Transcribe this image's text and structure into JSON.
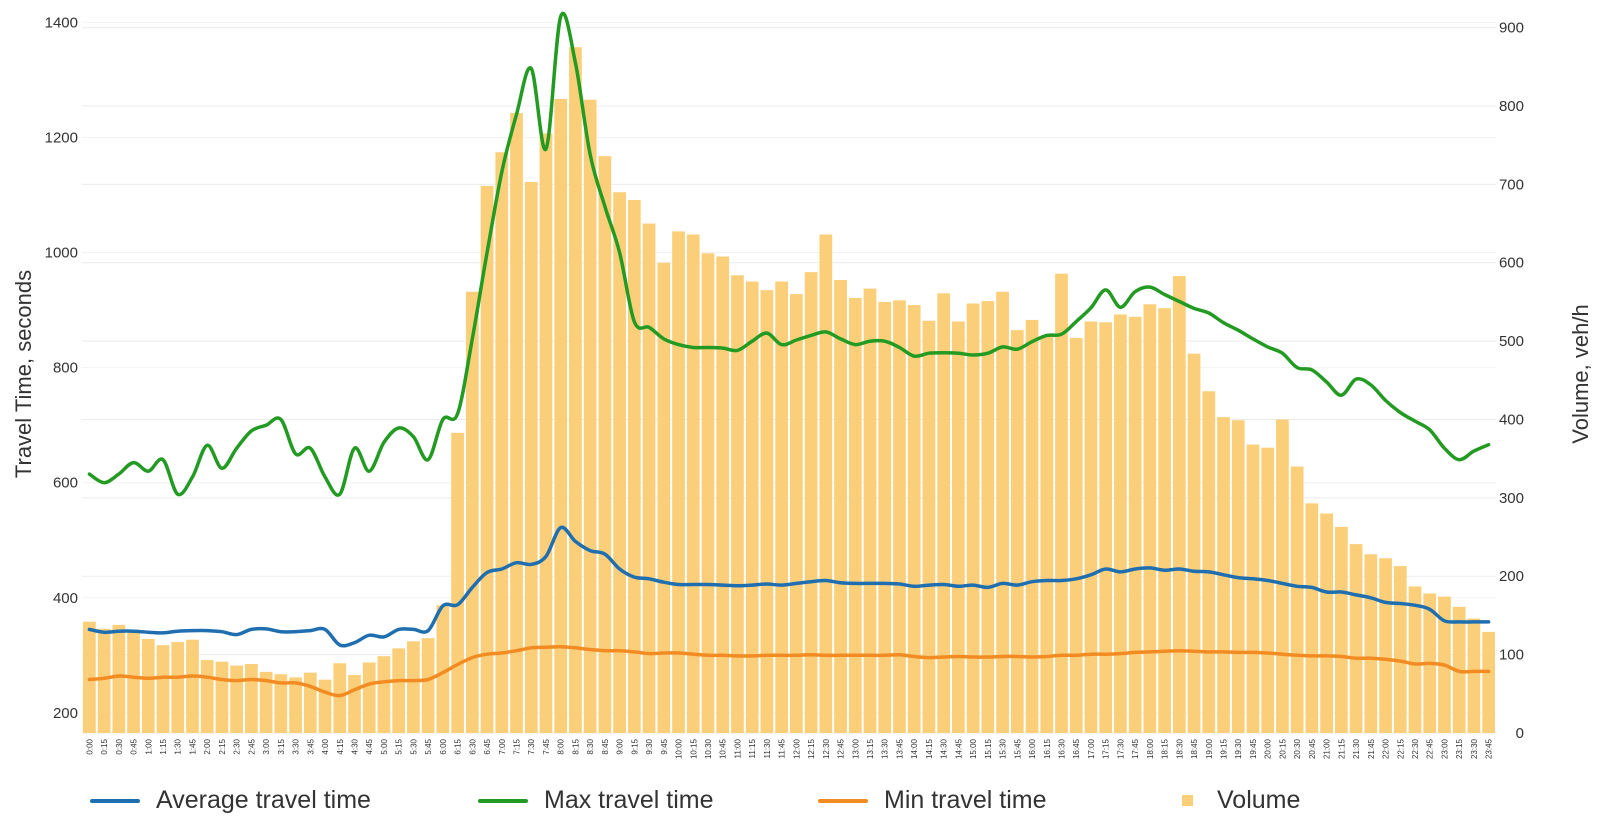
{
  "chart_data": {
    "type": "bar+line",
    "title": "",
    "ylabel_left": "Travel Time, seconds",
    "ylabel_right": "Volume, veh/h",
    "yticks_left": [
      200,
      400,
      600,
      800,
      1000,
      1200,
      1400
    ],
    "yticks_right": [
      0,
      100,
      200,
      300,
      400,
      500,
      600,
      700,
      800,
      900
    ],
    "ylim_left": [
      165,
      1425
    ],
    "ylim_right": [
      0,
      925
    ],
    "grid": true,
    "legend_position": "bottom",
    "categories": [
      "0:00",
      "0:15",
      "0:30",
      "0:45",
      "1:00",
      "1:15",
      "1:30",
      "1:45",
      "2:00",
      "2:15",
      "2:30",
      "2:45",
      "3:00",
      "3:15",
      "3:30",
      "3:45",
      "4:00",
      "4:15",
      "4:30",
      "4:45",
      "5:00",
      "5:15",
      "5:30",
      "5:45",
      "6:00",
      "6:15",
      "6:30",
      "6:45",
      "7:00",
      "7:15",
      "7:30",
      "7:45",
      "8:00",
      "8:15",
      "8:30",
      "8:45",
      "9:00",
      "9:15",
      "9:30",
      "9:45",
      "10:00",
      "10:15",
      "10:30",
      "10:45",
      "11:00",
      "11:15",
      "11:30",
      "11:45",
      "12:00",
      "12:15",
      "12:30",
      "12:45",
      "13:00",
      "13:15",
      "13:30",
      "13:45",
      "14:00",
      "14:15",
      "14:30",
      "14:45",
      "15:00",
      "15:15",
      "15:30",
      "15:45",
      "16:00",
      "16:15",
      "16:30",
      "16:45",
      "17:00",
      "17:15",
      "17:30",
      "17:45",
      "18:00",
      "18:15",
      "18:30",
      "18:45",
      "19:00",
      "19:15",
      "19:30",
      "19:45",
      "20:00",
      "20:15",
      "20:30",
      "20:45",
      "21:00",
      "21:15",
      "21:30",
      "21:45",
      "22:00",
      "22:15",
      "22:30",
      "22:45",
      "23:00",
      "23:15",
      "23:30",
      "23:45"
    ],
    "series": [
      {
        "name": "Average travel time",
        "axis": "left",
        "kind": "line",
        "color": "#1f6fb0",
        "values": [
          345,
          340,
          342,
          342,
          340,
          339,
          342,
          343,
          343,
          341,
          336,
          345,
          346,
          341,
          341,
          343,
          345,
          318,
          322,
          335,
          332,
          345,
          345,
          343,
          386,
          388,
          418,
          444,
          450,
          461,
          458,
          472,
          522,
          498,
          482,
          476,
          450,
          436,
          433,
          427,
          423,
          423,
          423,
          422,
          421,
          422,
          424,
          422,
          425,
          428,
          430,
          426,
          425,
          425,
          425,
          424,
          420,
          422,
          423,
          420,
          422,
          418,
          425,
          422,
          428,
          430,
          430,
          433,
          440,
          450,
          445,
          450,
          452,
          448,
          450,
          446,
          445,
          440,
          435,
          433,
          430,
          425,
          420,
          418,
          410,
          410,
          405,
          400,
          392,
          390,
          387,
          380,
          360,
          358,
          358,
          358
        ]
      },
      {
        "name": "Max travel time",
        "axis": "left",
        "kind": "line",
        "color": "#239b23",
        "values": [
          615,
          600,
          615,
          635,
          620,
          640,
          580,
          610,
          665,
          625,
          660,
          690,
          700,
          710,
          650,
          660,
          610,
          580,
          660,
          620,
          670,
          695,
          680,
          640,
          710,
          720,
          850,
          1000,
          1140,
          1240,
          1320,
          1180,
          1410,
          1330,
          1170,
          1080,
          1000,
          880,
          870,
          850,
          840,
          835,
          835,
          834,
          830,
          846,
          860,
          840,
          848,
          856,
          862,
          850,
          840,
          846,
          846,
          835,
          820,
          825,
          826,
          825,
          822,
          825,
          836,
          832,
          845,
          856,
          858,
          880,
          904,
          935,
          905,
          932,
          940,
          927,
          915,
          903,
          895,
          878,
          865,
          850,
          836,
          825,
          800,
          796,
          775,
          752,
          780,
          770,
          743,
          722,
          707,
          692,
          660,
          640,
          655,
          666
        ]
      },
      {
        "name": "Min travel time",
        "axis": "left",
        "kind": "line",
        "color": "#f28c22",
        "values": [
          258,
          260,
          264,
          262,
          260,
          262,
          262,
          264,
          262,
          258,
          256,
          258,
          256,
          252,
          252,
          246,
          236,
          230,
          240,
          250,
          254,
          256,
          256,
          258,
          270,
          284,
          296,
          302,
          304,
          308,
          313,
          314,
          315,
          313,
          310,
          308,
          308,
          306,
          303,
          304,
          304,
          302,
          300,
          300,
          299,
          299,
          300,
          300,
          300,
          301,
          300,
          300,
          300,
          300,
          300,
          301,
          298,
          296,
          297,
          298,
          297,
          297,
          298,
          298,
          297,
          298,
          300,
          300,
          302,
          302,
          303,
          305,
          306,
          307,
          308,
          307,
          306,
          306,
          305,
          305,
          304,
          302,
          300,
          299,
          299,
          298,
          295,
          295,
          293,
          290,
          285,
          286,
          283,
          272,
          272,
          272
        ]
      },
      {
        "name": "Volume",
        "axis": "right",
        "kind": "bar",
        "color": "#fbcf79",
        "values": [
          142,
          133,
          138,
          129,
          120,
          112,
          116,
          119,
          93,
          91,
          86,
          88,
          78,
          75,
          71,
          77,
          68,
          89,
          74,
          90,
          98,
          108,
          117,
          121,
          163,
          383,
          563,
          698,
          741,
          791,
          703,
          765,
          809,
          875,
          808,
          736,
          690,
          680,
          650,
          600,
          640,
          636,
          612,
          608,
          584,
          576,
          565,
          576,
          560,
          588,
          636,
          578,
          555,
          567,
          550,
          552,
          546,
          526,
          561,
          525,
          548,
          551,
          563,
          514,
          527,
          506,
          586,
          504,
          525,
          524,
          534,
          531,
          547,
          542,
          583,
          484,
          436,
          403,
          399,
          368,
          364,
          400,
          340,
          293,
          280,
          263,
          241,
          228,
          223,
          213,
          187,
          178,
          174,
          161,
          146,
          129
        ]
      }
    ]
  }
}
